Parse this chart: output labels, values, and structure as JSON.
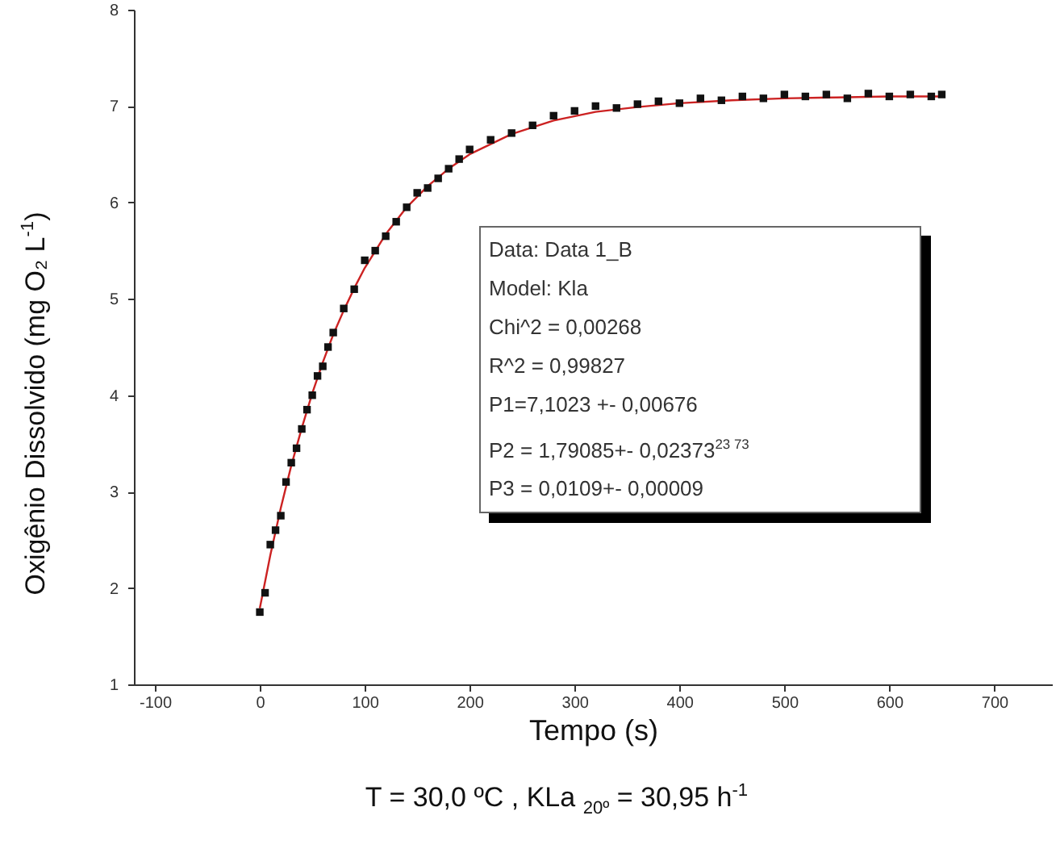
{
  "chart_data": {
    "type": "scatter",
    "xlabel": "Tempo (s)",
    "ylabel": "Oxigênio Dissolvido (mg O₂ L$^{-1}$)",
    "xlim": [
      -120,
      755
    ],
    "ylim": [
      1,
      8
    ],
    "xticks": [
      -100,
      0,
      100,
      200,
      300,
      400,
      500,
      600,
      700
    ],
    "yticks": [
      1,
      2,
      3,
      4,
      5,
      6,
      7,
      8
    ],
    "grid": false,
    "series": [
      {
        "marker": "square",
        "color": "#111111",
        "x": [
          0,
          5,
          10,
          15,
          20,
          25,
          30,
          35,
          40,
          45,
          50,
          55,
          60,
          65,
          70,
          80,
          90,
          100,
          110,
          120,
          130,
          140,
          150,
          160,
          170,
          180,
          190,
          200,
          220,
          240,
          260,
          280,
          300,
          320,
          340,
          360,
          380,
          400,
          420,
          440,
          460,
          480,
          500,
          520,
          540,
          560,
          580,
          600,
          620,
          640,
          650
        ],
        "values": [
          1.75,
          1.95,
          2.45,
          2.6,
          2.75,
          3.1,
          3.3,
          3.45,
          3.65,
          3.85,
          4.0,
          4.2,
          4.3,
          4.5,
          4.65,
          4.9,
          5.1,
          5.4,
          5.5,
          5.65,
          5.8,
          5.95,
          6.1,
          6.15,
          6.25,
          6.35,
          6.45,
          6.55,
          6.65,
          6.72,
          6.8,
          6.9,
          6.95,
          7.0,
          6.98,
          7.02,
          7.05,
          7.03,
          7.08,
          7.06,
          7.1,
          7.08,
          7.12,
          7.1,
          7.12,
          7.08,
          7.13,
          7.1,
          7.12,
          7.1,
          7.12
        ]
      },
      {
        "type": "line",
        "color": "#cc2222",
        "x": [
          0,
          10,
          20,
          30,
          40,
          50,
          60,
          70,
          80,
          90,
          100,
          120,
          140,
          160,
          180,
          200,
          240,
          280,
          320,
          360,
          400,
          450,
          500,
          550,
          600,
          650
        ],
        "values": [
          1.79,
          2.34,
          2.83,
          3.27,
          3.66,
          4.02,
          4.34,
          4.63,
          4.88,
          5.11,
          5.32,
          5.67,
          5.95,
          6.17,
          6.35,
          6.5,
          6.71,
          6.85,
          6.94,
          6.99,
          7.03,
          7.06,
          7.08,
          7.09,
          7.1,
          7.1
        ]
      }
    ],
    "annotations": [
      "Data: Data 1_B",
      "Model: Kla",
      "Chi^2 = 0,00268",
      "R^2 = 0,99827",
      "P1=7,1023 +- 0,00676",
      "P2 = 1,79085+- 0,02373$^{23 73}$",
      "P3 = 0,0109+- 0,00009",
      "T = 30,0 ºC , KLa $_{20º}$ = 30,95 h$^{-1}$"
    ]
  }
}
